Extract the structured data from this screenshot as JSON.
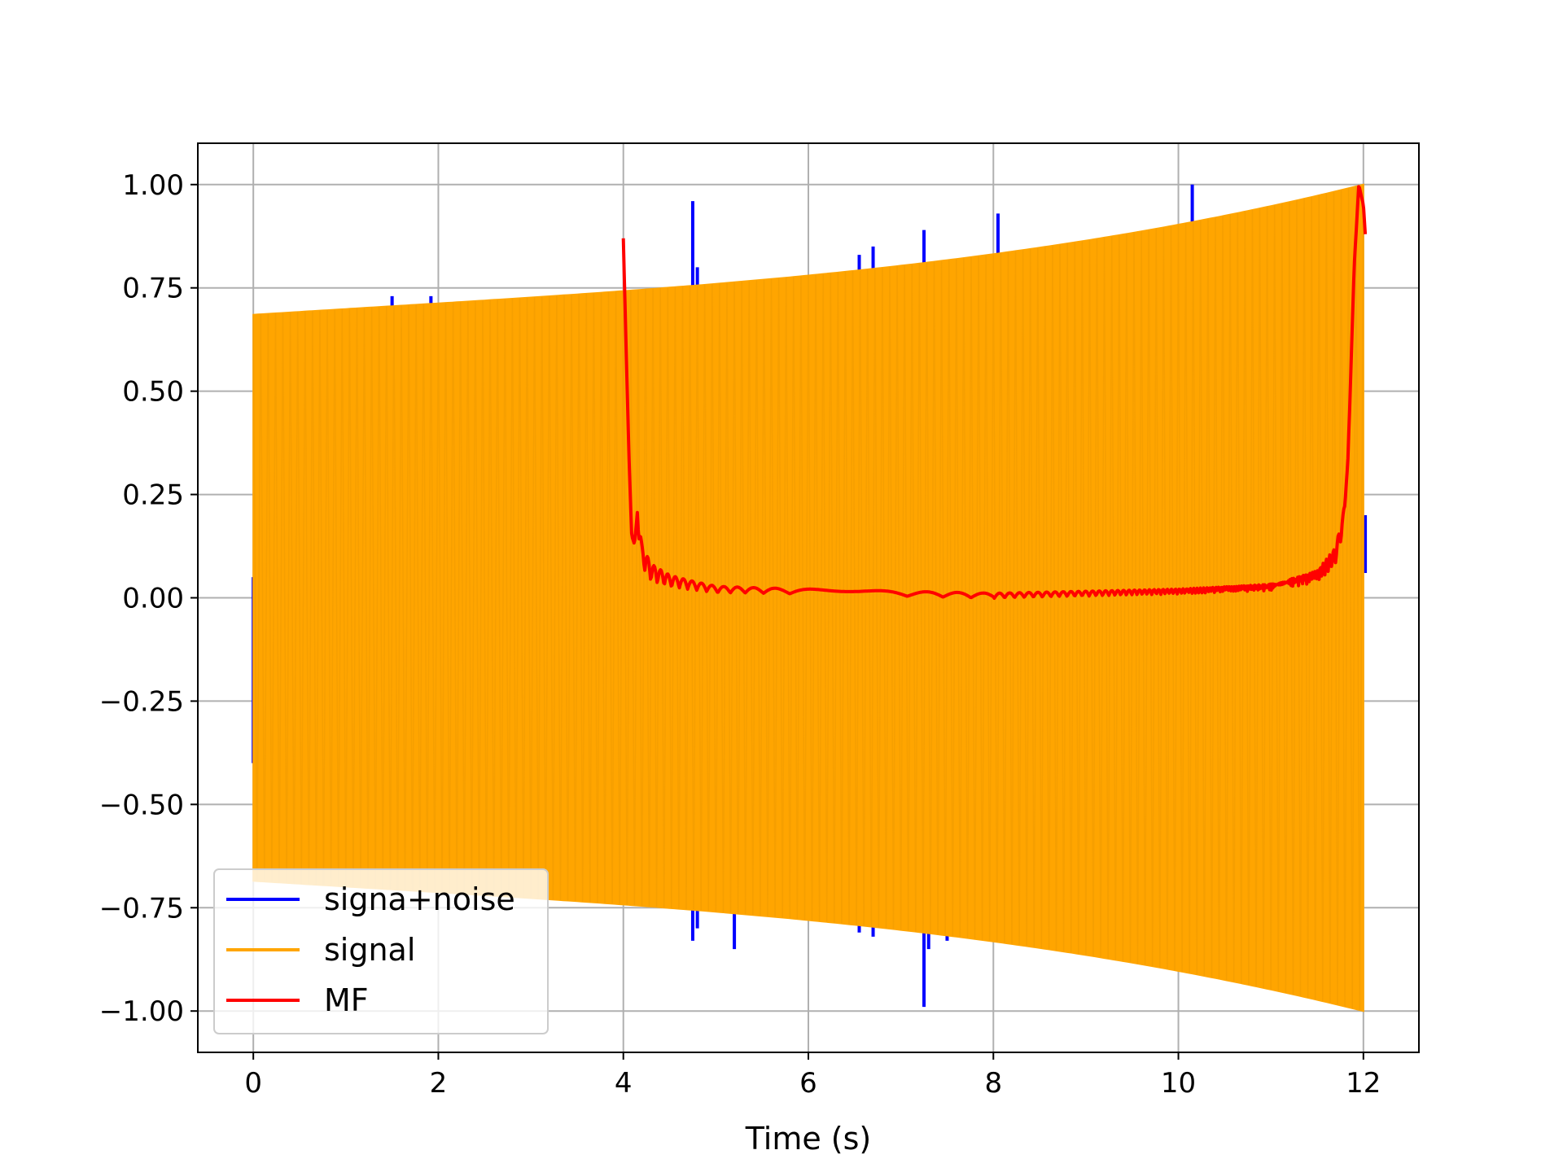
{
  "chart_data": {
    "type": "line",
    "title": "",
    "xlabel": "Time (s)",
    "ylabel": "",
    "xlim": [
      -0.6,
      12.6
    ],
    "ylim": [
      -1.1,
      1.1
    ],
    "xticks": [
      0,
      2,
      4,
      6,
      8,
      10,
      12
    ],
    "xtick_labels": [
      "0",
      "2",
      "4",
      "6",
      "8",
      "10",
      "12"
    ],
    "yticks": [
      1.0,
      0.75,
      0.5,
      0.25,
      0.0,
      -0.25,
      -0.5,
      -0.75,
      -1.0
    ],
    "ytick_labels": [
      "1.00",
      "0.75",
      "0.50",
      "0.25",
      "0.00",
      "−0.25",
      "−0.50",
      "−0.75",
      "−1.00"
    ],
    "grid": true,
    "legend_position": "lower-left",
    "series": [
      {
        "name": "signa+noise",
        "color": "#0000ff",
        "kind": "spikes",
        "spikes": [
          {
            "x": 0.0,
            "low": -0.4,
            "high": 0.05
          },
          {
            "x": 1.5,
            "low": -0.7,
            "high": 0.73
          },
          {
            "x": 1.92,
            "low": -0.7,
            "high": 0.73
          },
          {
            "x": 4.75,
            "low": -0.83,
            "high": 0.96
          },
          {
            "x": 4.8,
            "low": -0.8,
            "high": 0.8
          },
          {
            "x": 5.2,
            "low": -0.85,
            "high": 0.75
          },
          {
            "x": 6.55,
            "low": -0.81,
            "high": 0.83
          },
          {
            "x": 6.7,
            "low": -0.82,
            "high": 0.85
          },
          {
            "x": 7.25,
            "low": -0.99,
            "high": 0.89
          },
          {
            "x": 7.3,
            "low": -0.85,
            "high": 0.81
          },
          {
            "x": 7.5,
            "low": -0.83,
            "high": 0.8
          },
          {
            "x": 8.05,
            "low": -0.82,
            "high": 0.93
          },
          {
            "x": 10.15,
            "low": -0.9,
            "high": 1.0
          },
          {
            "x": 12.02,
            "low": 0.06,
            "high": 0.2
          }
        ]
      },
      {
        "name": "signal",
        "color": "#ffa500",
        "kind": "envelope",
        "envelope": {
          "x_start": 0.0,
          "x_end": 12.0,
          "amp_start": 0.685,
          "amp_mid": 0.78,
          "amp_end": 1.0,
          "cycles": 300
        }
      },
      {
        "name": "MF",
        "color": "#ff0000",
        "kind": "line",
        "x": [
          4.0,
          4.03,
          4.06,
          4.09,
          4.12,
          4.15,
          4.2,
          4.3,
          4.5,
          5.0,
          6.0,
          7.0,
          8.0,
          9.0,
          10.0,
          11.0,
          11.5,
          11.7,
          11.8,
          11.85,
          11.9,
          11.95,
          12.0,
          12.02
        ],
        "y": [
          0.87,
          0.6,
          0.35,
          0.15,
          0.13,
          0.2,
          0.1,
          0.06,
          0.04,
          0.02,
          0.015,
          0.01,
          0.005,
          0.01,
          0.015,
          0.025,
          0.05,
          0.1,
          0.2,
          0.45,
          0.8,
          1.0,
          0.95,
          0.88
        ]
      }
    ]
  }
}
